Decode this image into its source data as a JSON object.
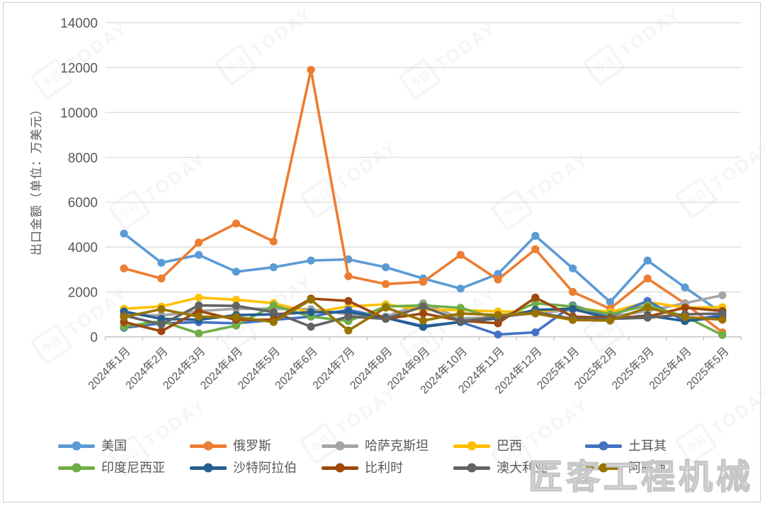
{
  "watermark": {
    "brand": "匠客工程机械",
    "logo_text": "TODAY",
    "logo_cjk": "今日"
  },
  "chart_data": {
    "type": "line",
    "title": "",
    "xlabel": "",
    "ylabel": "出口金额（单位：万美元）",
    "grid": true,
    "legend_position": "bottom",
    "y_axis": {
      "min": 0,
      "max": 14000,
      "step": 2000
    },
    "yticks": [
      0,
      2000,
      4000,
      6000,
      8000,
      10000,
      12000,
      14000
    ],
    "categories": [
      "2024年1月",
      "2024年2月",
      "2024年3月",
      "2024年4月",
      "2024年5月",
      "2024年6月",
      "2024年7月",
      "2024年8月",
      "2024年9月",
      "2024年10月",
      "2024年11月",
      "2024年12月",
      "2025年1月",
      "2025年2月",
      "2025年3月",
      "2025年4月",
      "2025年5月"
    ],
    "series": [
      {
        "id": "usa",
        "name": "美国",
        "color": "#5B9BD5",
        "values": [
          4600,
          3300,
          3650,
          2900,
          3100,
          3400,
          3450,
          3100,
          2600,
          2150,
          2800,
          4500,
          3050,
          1550,
          3400,
          2200,
          1050
        ]
      },
      {
        "id": "russia",
        "name": "俄罗斯",
        "color": "#ED7D31",
        "values": [
          3050,
          2600,
          4200,
          5050,
          4250,
          11900,
          2700,
          2350,
          2450,
          3650,
          2550,
          3900,
          2000,
          1250,
          2600,
          1480,
          200
        ]
      },
      {
        "id": "kazakhstan",
        "name": "哈萨克斯坦",
        "color": "#A5A5A5",
        "values": [
          1000,
          950,
          1150,
          1250,
          1250,
          1230,
          1000,
          900,
          1500,
          820,
          880,
          1050,
          1200,
          900,
          1150,
          1500,
          1850
        ]
      },
      {
        "id": "brazil",
        "name": "巴西",
        "color": "#FFC000",
        "values": [
          1250,
          1350,
          1750,
          1650,
          1500,
          1080,
          1350,
          1450,
          1200,
          1190,
          1130,
          1100,
          1300,
          1100,
          1550,
          1300,
          1320
        ]
      },
      {
        "id": "turkey",
        "name": "土耳其",
        "color": "#4472C4",
        "values": [
          400,
          600,
          650,
          600,
          750,
          900,
          1200,
          850,
          480,
          660,
          100,
          200,
          1400,
          900,
          1600,
          700,
          980
        ]
      },
      {
        "id": "indonesia",
        "name": "印度尼西亚",
        "color": "#70AD47",
        "values": [
          450,
          700,
          150,
          500,
          1400,
          900,
          700,
          1350,
          1400,
          1290,
          800,
          1500,
          1350,
          1000,
          1400,
          910,
          80
        ]
      },
      {
        "id": "saudi-arabia",
        "name": "沙特阿拉伯",
        "color": "#255E91",
        "values": [
          1130,
          800,
          760,
          970,
          1000,
          1100,
          1100,
          850,
          440,
          660,
          820,
          1200,
          1250,
          800,
          950,
          700,
          880
        ]
      },
      {
        "id": "belgium",
        "name": "比利时",
        "color": "#9E480E",
        "values": [
          660,
          250,
          1150,
          760,
          760,
          1700,
          1600,
          800,
          1040,
          720,
          600,
          1750,
          900,
          850,
          900,
          1300,
          1150
        ]
      },
      {
        "id": "australia",
        "name": "澳大利亚",
        "color": "#636363",
        "values": [
          950,
          550,
          1400,
          1380,
          1100,
          450,
          900,
          800,
          1350,
          700,
          880,
          1100,
          800,
          800,
          850,
          1000,
          1040
        ]
      },
      {
        "id": "uae",
        "name": "阿联酋",
        "color": "#997300",
        "values": [
          880,
          1230,
          900,
          880,
          660,
          1650,
          280,
          1300,
          720,
          1040,
          970,
          1040,
          750,
          720,
          1300,
          880,
          760
        ]
      }
    ]
  }
}
